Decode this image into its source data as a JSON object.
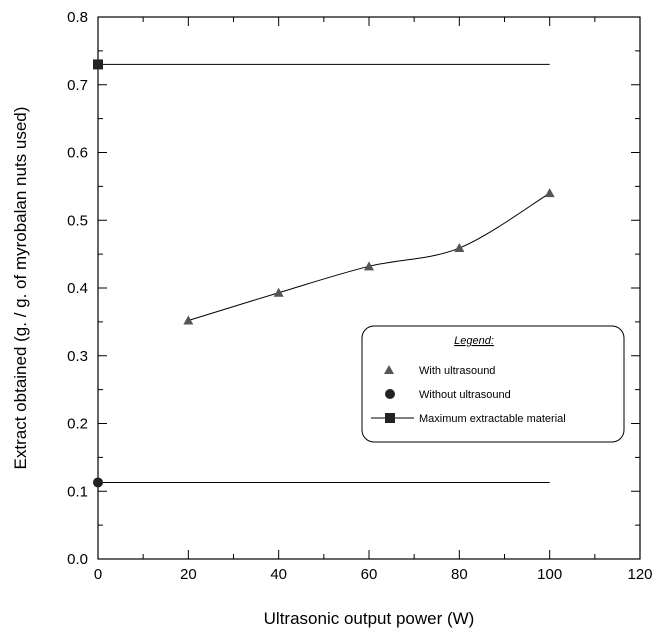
{
  "chart_data": {
    "type": "scatter",
    "title": "",
    "xlabel": "Ultrasonic output power (W)",
    "ylabel": "Extract obtained (g. / g. of myrobalan nuts used)",
    "xlim": [
      0,
      120
    ],
    "ylim": [
      0.0,
      0.8
    ],
    "xticks": [
      "0",
      "20",
      "40",
      "60",
      "80",
      "100",
      "120"
    ],
    "yticks": [
      "0.0",
      "0.1",
      "0.2",
      "0.3",
      "0.4",
      "0.5",
      "0.6",
      "0.7",
      "0.8"
    ],
    "grid": false,
    "legend_position": "lower-right",
    "legend_title": "Legend:",
    "series": [
      {
        "name": "With ultrasound",
        "marker": "triangle",
        "color": "#555555",
        "x": [
          20,
          40,
          60,
          80,
          100
        ],
        "y": [
          0.352,
          0.393,
          0.432,
          0.459,
          0.54
        ],
        "fit_line": "smooth"
      },
      {
        "name": "Without ultrasound",
        "marker": "circle",
        "color": "#222222",
        "x": [
          0
        ],
        "y": [
          0.113
        ],
        "reference_line": {
          "from_x": 0,
          "to_x": 100,
          "y": 0.113
        }
      },
      {
        "name": "Maximum extractable material",
        "marker": "square",
        "color": "#222222",
        "x": [
          0
        ],
        "y": [
          0.73
        ],
        "reference_line": {
          "from_x": 0,
          "to_x": 100,
          "y": 0.73
        }
      }
    ]
  }
}
